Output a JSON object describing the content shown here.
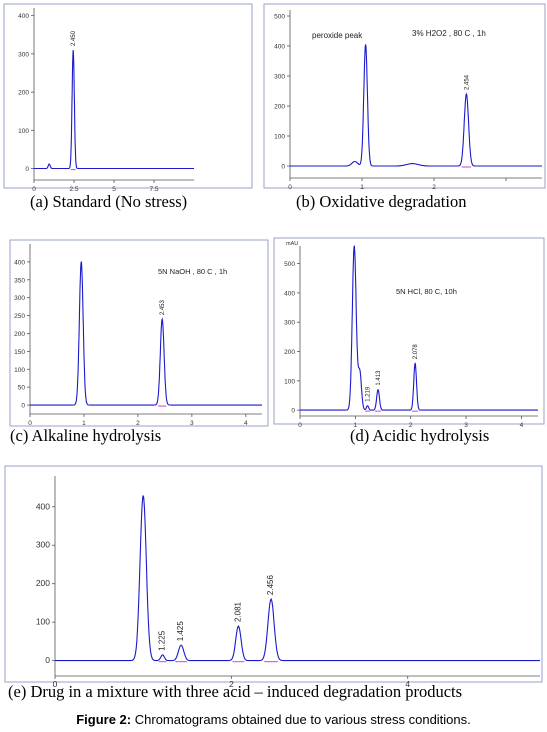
{
  "figure_caption": {
    "label": "Figure 2:",
    "text": "Chromatograms obtained due to various stress conditions."
  },
  "panels": [
    {
      "caption": "(a) Standard (No stress)"
    },
    {
      "caption": "(b) Oxidative degradation"
    },
    {
      "caption": "(c) Alkaline hydrolysis"
    },
    {
      "caption": "(d) Acidic hydrolysis"
    },
    {
      "caption": "(e) Drug in a mixture with three acid – induced degradation products"
    }
  ],
  "colors": {
    "trace": "#1a1acc",
    "baseline_marker": "#e060c0",
    "frame": "#9aa2c8",
    "plot_bg": "#ffffff"
  },
  "chart_data": [
    {
      "type": "line",
      "title": "(a) Standard (No stress)",
      "xlabel": "",
      "ylabel": "",
      "xlim": [
        0,
        10
      ],
      "ylim": [
        -30,
        420
      ],
      "xticks": [
        0,
        2.5,
        5,
        7.5
      ],
      "xtick_labels": [
        "0",
        "2.5",
        "5",
        "7.5"
      ],
      "yticks": [
        0,
        100,
        200,
        300,
        400
      ],
      "ytick_labels": [
        "0",
        "100",
        "200",
        "300",
        "400"
      ],
      "annotations": [],
      "peaks": [
        {
          "x": 0.95,
          "h": 12,
          "w": 0.06,
          "label": ""
        },
        {
          "x": 2.45,
          "h": 310,
          "w": 0.07,
          "label": "2.450"
        }
      ]
    },
    {
      "type": "line",
      "title": "(b) Oxidative degradation",
      "xlabel": "",
      "ylabel": "",
      "xlim": [
        0,
        3.5
      ],
      "ylim": [
        -40,
        520
      ],
      "xticks": [
        0,
        1,
        2,
        3
      ],
      "xtick_labels": [
        "0",
        "1",
        "2",
        ""
      ],
      "yticks": [
        0,
        100,
        200,
        300,
        400,
        500
      ],
      "ytick_labels": [
        "0",
        "100",
        "200",
        "300",
        "400",
        "500"
      ],
      "annotations": [
        "peroxide peak",
        "3% H2O2 , 80 C , 1h"
      ],
      "peaks": [
        {
          "x": 0.9,
          "h": 15,
          "w": 0.04,
          "label": ""
        },
        {
          "x": 1.05,
          "h": 405,
          "w": 0.025,
          "label": ""
        },
        {
          "x": 1.7,
          "h": 8,
          "w": 0.08,
          "label": ""
        },
        {
          "x": 2.45,
          "h": 240,
          "w": 0.03,
          "label": "2.454"
        }
      ]
    },
    {
      "type": "line",
      "title": "(c) Alkaline hydrolysis",
      "xlabel": "",
      "ylabel": "",
      "xlim": [
        0,
        4.3
      ],
      "ylim": [
        -25,
        450
      ],
      "xticks": [
        0,
        1,
        2,
        3,
        4
      ],
      "xtick_labels": [
        "0",
        "1",
        "2",
        "3",
        "4"
      ],
      "yticks": [
        0,
        50,
        100,
        150,
        200,
        250,
        300,
        350,
        400
      ],
      "ytick_labels": [
        "0",
        "50",
        "100",
        "150",
        "200",
        "250",
        "300",
        "350",
        "400"
      ],
      "annotations": [
        "5N NaOH , 80 C , 1h"
      ],
      "peaks": [
        {
          "x": 0.95,
          "h": 400,
          "w": 0.035,
          "label": ""
        },
        {
          "x": 2.45,
          "h": 240,
          "w": 0.035,
          "label": "2.453"
        }
      ]
    },
    {
      "type": "line",
      "title": "(d) Acidic hydrolysis",
      "xlabel": "",
      "ylabel": "mAU",
      "xlim": [
        0,
        4.3
      ],
      "ylim": [
        -20,
        560
      ],
      "xticks": [
        0,
        1,
        2,
        3,
        4
      ],
      "xtick_labels": [
        "0",
        "1",
        "2",
        "3",
        "4"
      ],
      "yticks": [
        0,
        100,
        200,
        300,
        400,
        500
      ],
      "ytick_labels": [
        "0",
        "100",
        "200",
        "300",
        "400",
        "500"
      ],
      "annotations": [
        "5N HCl, 80 C, 10h"
      ],
      "peaks": [
        {
          "x": 0.98,
          "h": 560,
          "w": 0.035,
          "label": ""
        },
        {
          "x": 1.08,
          "h": 130,
          "w": 0.03,
          "label": ""
        },
        {
          "x": 1.22,
          "h": 15,
          "w": 0.02,
          "label": "1.219"
        },
        {
          "x": 1.41,
          "h": 70,
          "w": 0.025,
          "label": "1.413"
        },
        {
          "x": 2.08,
          "h": 160,
          "w": 0.025,
          "label": "2.078"
        }
      ]
    },
    {
      "type": "line",
      "title": "(e) Drug in a mixture with three acid – induced degradation products",
      "xlabel": "",
      "ylabel": "",
      "xlim": [
        0,
        5.5
      ],
      "ylim": [
        -40,
        480
      ],
      "xticks": [
        0,
        2,
        4
      ],
      "xtick_labels": [
        "0",
        "2",
        "4"
      ],
      "yticks": [
        0,
        100,
        200,
        300,
        400
      ],
      "ytick_labels": [
        "0",
        "100",
        "200",
        "300",
        "400"
      ],
      "annotations": [],
      "peaks": [
        {
          "x": 1.0,
          "h": 430,
          "w": 0.035,
          "label": ""
        },
        {
          "x": 1.22,
          "h": 15,
          "w": 0.02,
          "label": "1.225"
        },
        {
          "x": 1.43,
          "h": 40,
          "w": 0.03,
          "label": "1.425"
        },
        {
          "x": 2.08,
          "h": 90,
          "w": 0.03,
          "label": "2.081"
        },
        {
          "x": 2.45,
          "h": 160,
          "w": 0.035,
          "label": "2.456"
        }
      ]
    }
  ]
}
